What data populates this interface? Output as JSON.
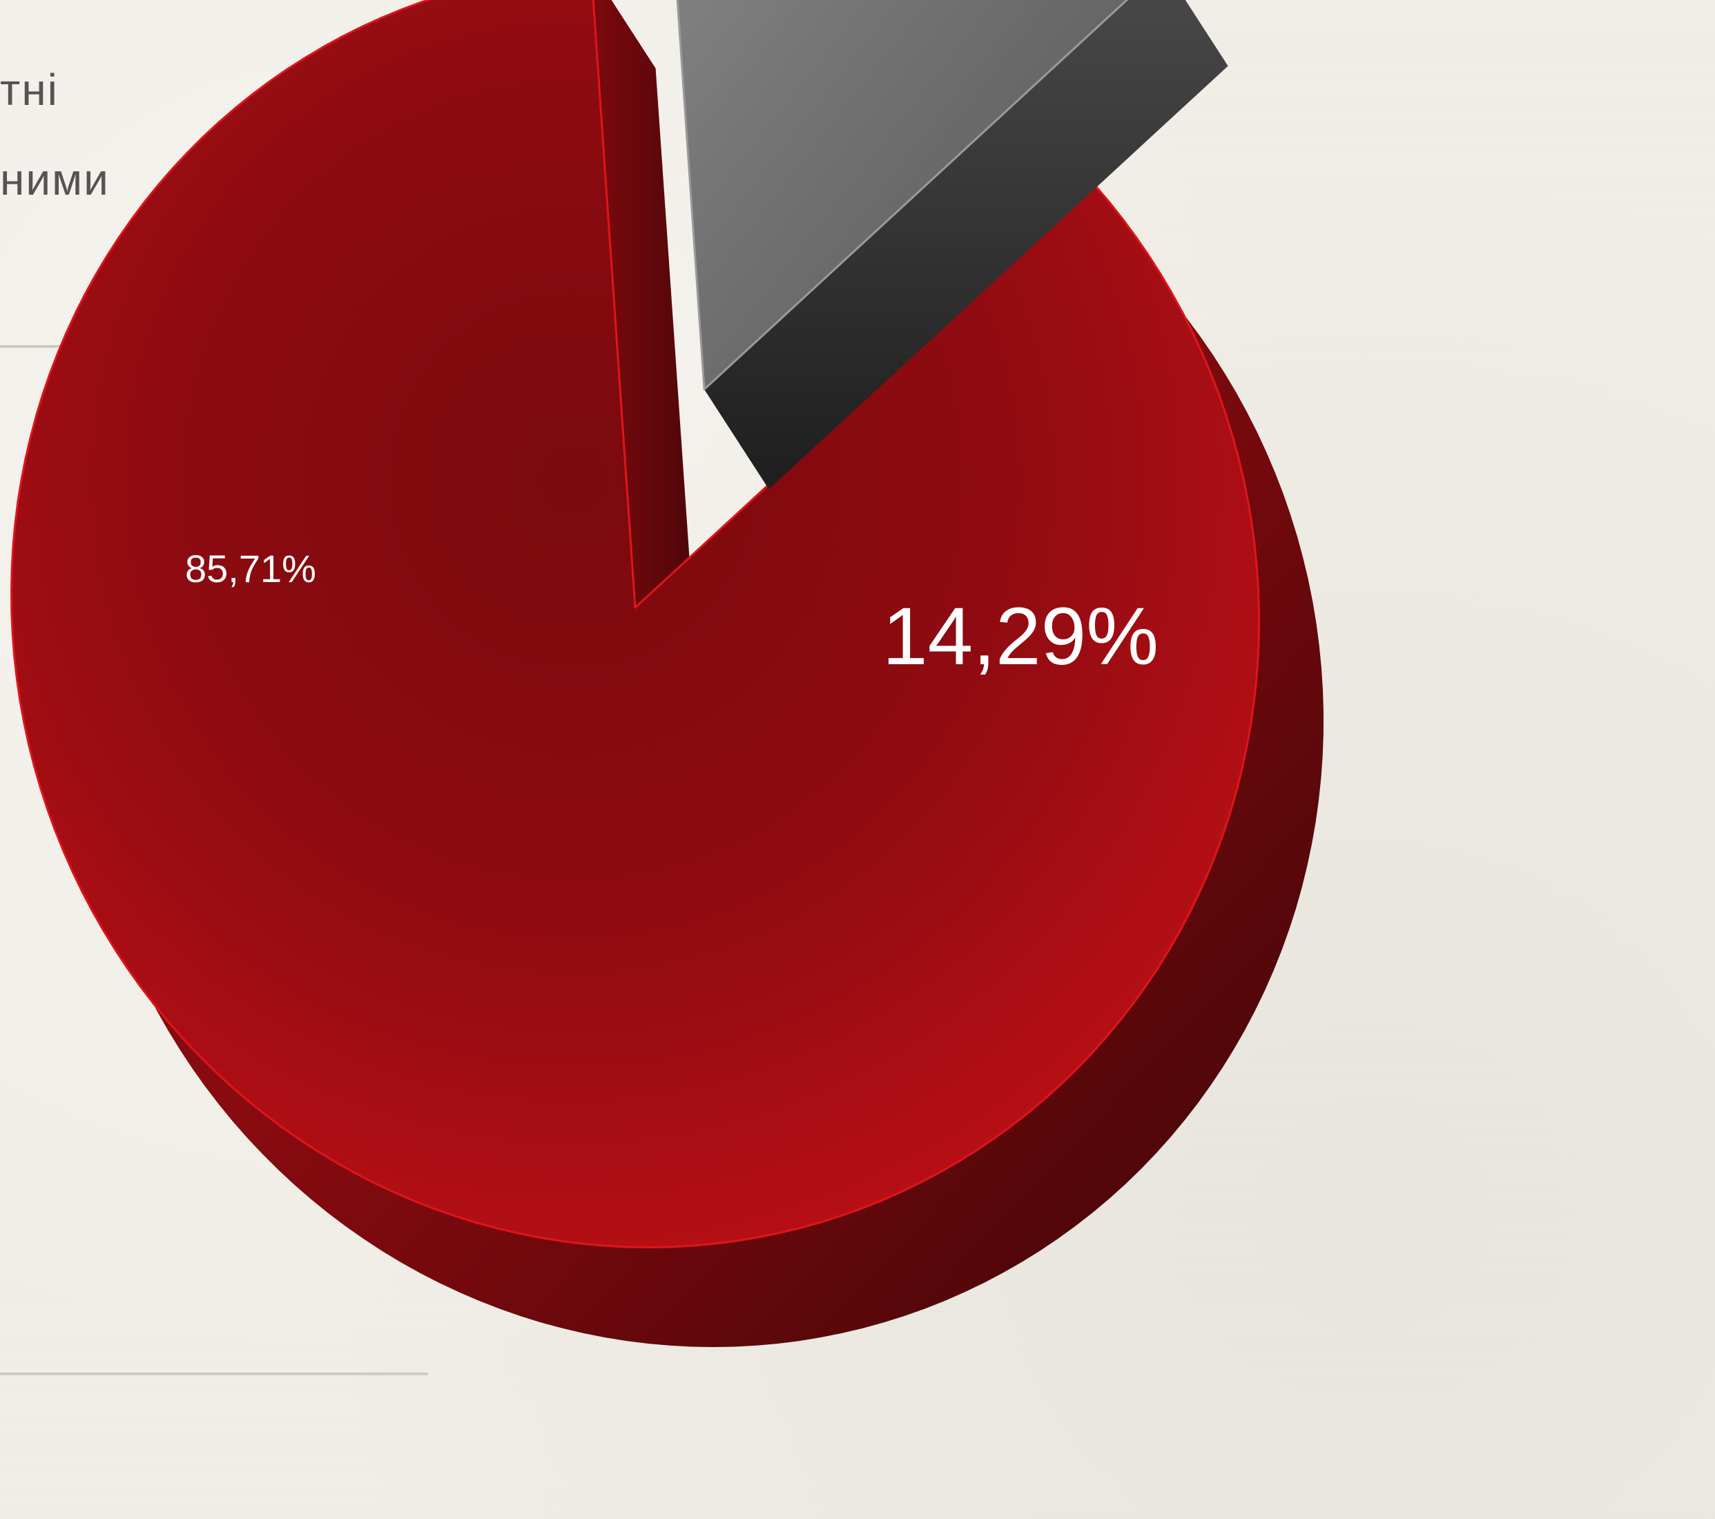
{
  "page": {
    "caption_lines": [
      "тні",
      "ними"
    ]
  },
  "chart_data": {
    "type": "pie",
    "style": "3d-exploded",
    "values": [
      85.71,
      14.29
    ],
    "data_labels": [
      "85,71%",
      "14,29%"
    ],
    "colors": [
      "#b80d12",
      "#6b6b6b"
    ],
    "exploded": [
      false,
      true
    ]
  }
}
